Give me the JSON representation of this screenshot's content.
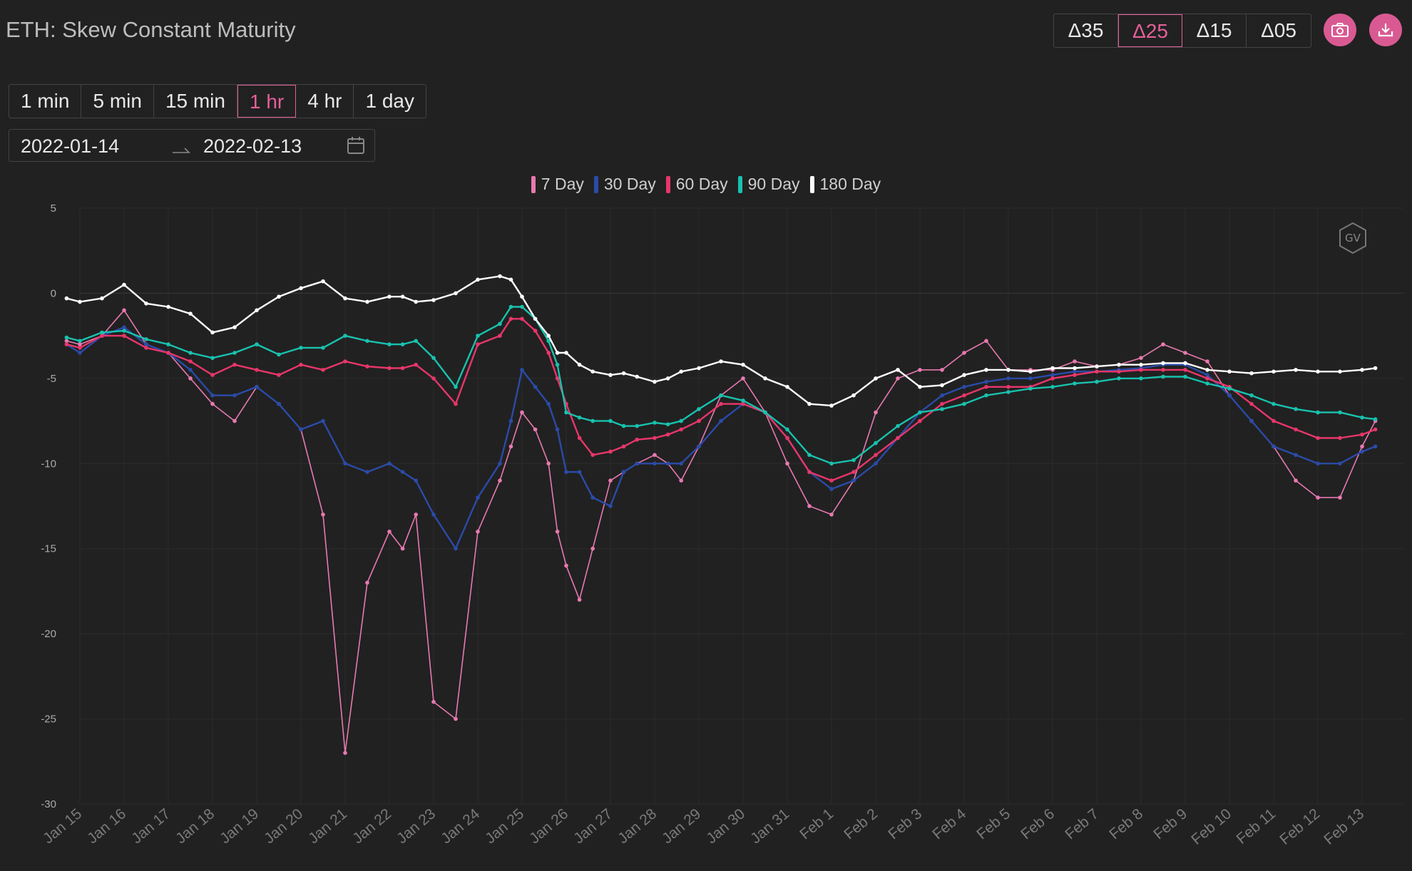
{
  "title": "ETH: Skew Constant Maturity",
  "delta_tabs": [
    {
      "label": "Δ35",
      "active": false
    },
    {
      "label": "Δ25",
      "active": true
    },
    {
      "label": "Δ15",
      "active": false
    },
    {
      "label": "Δ05",
      "active": false
    }
  ],
  "toolbar_icons": {
    "screenshot": "camera-icon",
    "download": "download-icon"
  },
  "timeframes": [
    {
      "label": "1 min",
      "active": false
    },
    {
      "label": "5 min",
      "active": false
    },
    {
      "label": "15 min",
      "active": false
    },
    {
      "label": "1 hr",
      "active": true
    },
    {
      "label": "4 hr",
      "active": false
    },
    {
      "label": "1 day",
      "active": false
    }
  ],
  "date_range": {
    "start": "2022-01-14",
    "end": "2022-02-13",
    "icon": "calendar-icon"
  },
  "watermark": "GV",
  "colors": {
    "accent": "#e4609a",
    "background": "#212121"
  },
  "chart_data": {
    "type": "line",
    "title": "",
    "xlabel": "",
    "ylabel": "",
    "ylim": [
      -30,
      5
    ],
    "yticks": [
      5,
      0,
      -5,
      -10,
      -15,
      -20,
      -25,
      -30
    ],
    "xticks": [
      "Jan 15",
      "Jan 16",
      "Jan 17",
      "Jan 18",
      "Jan 19",
      "Jan 20",
      "Jan 21",
      "Jan 22",
      "Jan 23",
      "Jan 24",
      "Jan 25",
      "Jan 26",
      "Jan 27",
      "Jan 28",
      "Jan 29",
      "Jan 30",
      "Jan 31",
      "Feb 1",
      "Feb 2",
      "Feb 3",
      "Feb 4",
      "Feb 5",
      "Feb 6",
      "Feb 7",
      "Feb 8",
      "Feb 9",
      "Feb 10",
      "Feb 11",
      "Feb 12",
      "Feb 13"
    ],
    "grid": true,
    "legend_position": "top-center",
    "x_day_offsets": [
      -0.3,
      0,
      0.5,
      1,
      1.5,
      2,
      2.5,
      3,
      3.5,
      4,
      4.5,
      5,
      5.5,
      6,
      6.5,
      7,
      7.3,
      7.6,
      8,
      8.5,
      9,
      9.5,
      9.75,
      10,
      10.3,
      10.6,
      10.8,
      11,
      11.3,
      11.6,
      12,
      12.3,
      12.6,
      13,
      13.3,
      13.6,
      14,
      14.5,
      15,
      15.5,
      16,
      16.5,
      17,
      17.5,
      18,
      18.5,
      19,
      19.5,
      20,
      20.5,
      21,
      21.5,
      22,
      22.5,
      23,
      23.5,
      24,
      24.5,
      25,
      25.5,
      26,
      26.5,
      27,
      27.5,
      28,
      28.5,
      29,
      29.3
    ],
    "series": [
      {
        "name": "7 Day",
        "color": "#e879b0",
        "values": [
          -2.8,
          -3,
          -2.5,
          -1,
          -3,
          -3.5,
          -5,
          -6.5,
          -7.5,
          -5.5,
          -6.5,
          -8,
          -13,
          -27,
          -17,
          -14,
          -15,
          -13,
          -24,
          -25,
          -14,
          -11,
          -9,
          -7,
          -8,
          -10,
          -14,
          -16,
          -18,
          -15,
          -11,
          -10.5,
          -10,
          -9.5,
          -10,
          -11,
          -9,
          -6,
          -5,
          -7,
          -10,
          -12.5,
          -13,
          -11,
          -7,
          -5,
          -4.5,
          -4.5,
          -3.5,
          -2.8,
          -4.5,
          -4.5,
          -4.5,
          -4,
          -4.3,
          -4.2,
          -3.8,
          -3,
          -3.5,
          -4,
          -6,
          -7.5,
          -9,
          -11,
          -12,
          -12,
          -9,
          -7.5
        ]
      },
      {
        "name": "30 Day",
        "color": "#2b4ba8",
        "values": [
          -3,
          -3.5,
          -2.5,
          -2,
          -3,
          -3.5,
          -4.5,
          -6,
          -6,
          -5.5,
          -6.5,
          -8,
          -7.5,
          -10,
          -10.5,
          -10,
          -10.5,
          -11,
          -13,
          -15,
          -12,
          -10,
          -7.5,
          -4.5,
          -5.5,
          -6.5,
          -8,
          -10.5,
          -10.5,
          -12,
          -12.5,
          -10.5,
          -10,
          -10,
          -10,
          -10,
          -9,
          -7.5,
          -6.5,
          -7,
          -8.5,
          -10.5,
          -11.5,
          -11,
          -10,
          -8.5,
          -7,
          -6,
          -5.5,
          -5.2,
          -5,
          -5,
          -4.8,
          -4.6,
          -4.6,
          -4.5,
          -4.4,
          -4.2,
          -4.2,
          -4.8,
          -6,
          -7.5,
          -9,
          -9.5,
          -10,
          -10,
          -9.3,
          -9
        ]
      },
      {
        "name": "60 Day",
        "color": "#e8366a",
        "values": [
          -3,
          -3.2,
          -2.5,
          -2.5,
          -3.2,
          -3.5,
          -4,
          -4.8,
          -4.2,
          -4.5,
          -4.8,
          -4.2,
          -4.5,
          -4,
          -4.3,
          -4.4,
          -4.4,
          -4.2,
          -5,
          -6.5,
          -3,
          -2.5,
          -1.5,
          -1.5,
          -2.2,
          -3.5,
          -5,
          -6.5,
          -8.5,
          -9.5,
          -9.3,
          -9,
          -8.6,
          -8.5,
          -8.3,
          -8,
          -7.5,
          -6.5,
          -6.5,
          -7,
          -8.5,
          -10.5,
          -11,
          -10.5,
          -9.5,
          -8.5,
          -7.5,
          -6.5,
          -6,
          -5.5,
          -5.5,
          -5.5,
          -5,
          -4.8,
          -4.6,
          -4.6,
          -4.5,
          -4.5,
          -4.5,
          -5,
          -5.5,
          -6.5,
          -7.5,
          -8,
          -8.5,
          -8.5,
          -8.3,
          -8
        ]
      },
      {
        "name": "90 Day",
        "color": "#18c2ae",
        "values": [
          -2.6,
          -2.8,
          -2.3,
          -2.2,
          -2.7,
          -3,
          -3.5,
          -3.8,
          -3.5,
          -3,
          -3.6,
          -3.2,
          -3.2,
          -2.5,
          -2.8,
          -3,
          -3,
          -2.8,
          -3.8,
          -5.5,
          -2.5,
          -1.8,
          -0.8,
          -0.8,
          -1.5,
          -2.8,
          -4.2,
          -7,
          -7.3,
          -7.5,
          -7.5,
          -7.8,
          -7.8,
          -7.6,
          -7.7,
          -7.5,
          -6.8,
          -6,
          -6.3,
          -7,
          -8,
          -9.5,
          -10,
          -9.8,
          -8.8,
          -7.8,
          -7,
          -6.8,
          -6.5,
          -6,
          -5.8,
          -5.6,
          -5.5,
          -5.3,
          -5.2,
          -5,
          -5,
          -4.9,
          -4.9,
          -5.3,
          -5.6,
          -6,
          -6.5,
          -6.8,
          -7,
          -7,
          -7.3,
          -7.4
        ]
      },
      {
        "name": "180 Day",
        "color": "#ffffff",
        "values": [
          -0.3,
          -0.5,
          -0.3,
          0.5,
          -0.6,
          -0.8,
          -1.2,
          -2.3,
          -2,
          -1,
          -0.2,
          0.3,
          0.7,
          -0.3,
          -0.5,
          -0.2,
          -0.2,
          -0.5,
          -0.4,
          0,
          0.8,
          1,
          0.8,
          -0.2,
          -1.5,
          -2.5,
          -3.5,
          -3.5,
          -4.2,
          -4.6,
          -4.8,
          -4.7,
          -4.9,
          -5.2,
          -5,
          -4.6,
          -4.4,
          -4,
          -4.2,
          -5,
          -5.5,
          -6.5,
          -6.6,
          -6,
          -5,
          -4.5,
          -5.5,
          -5.4,
          -4.8,
          -4.5,
          -4.5,
          -4.6,
          -4.4,
          -4.4,
          -4.3,
          -4.2,
          -4.2,
          -4.1,
          -4.1,
          -4.5,
          -4.6,
          -4.7,
          -4.6,
          -4.5,
          -4.6,
          -4.6,
          -4.5,
          -4.4
        ]
      }
    ]
  }
}
